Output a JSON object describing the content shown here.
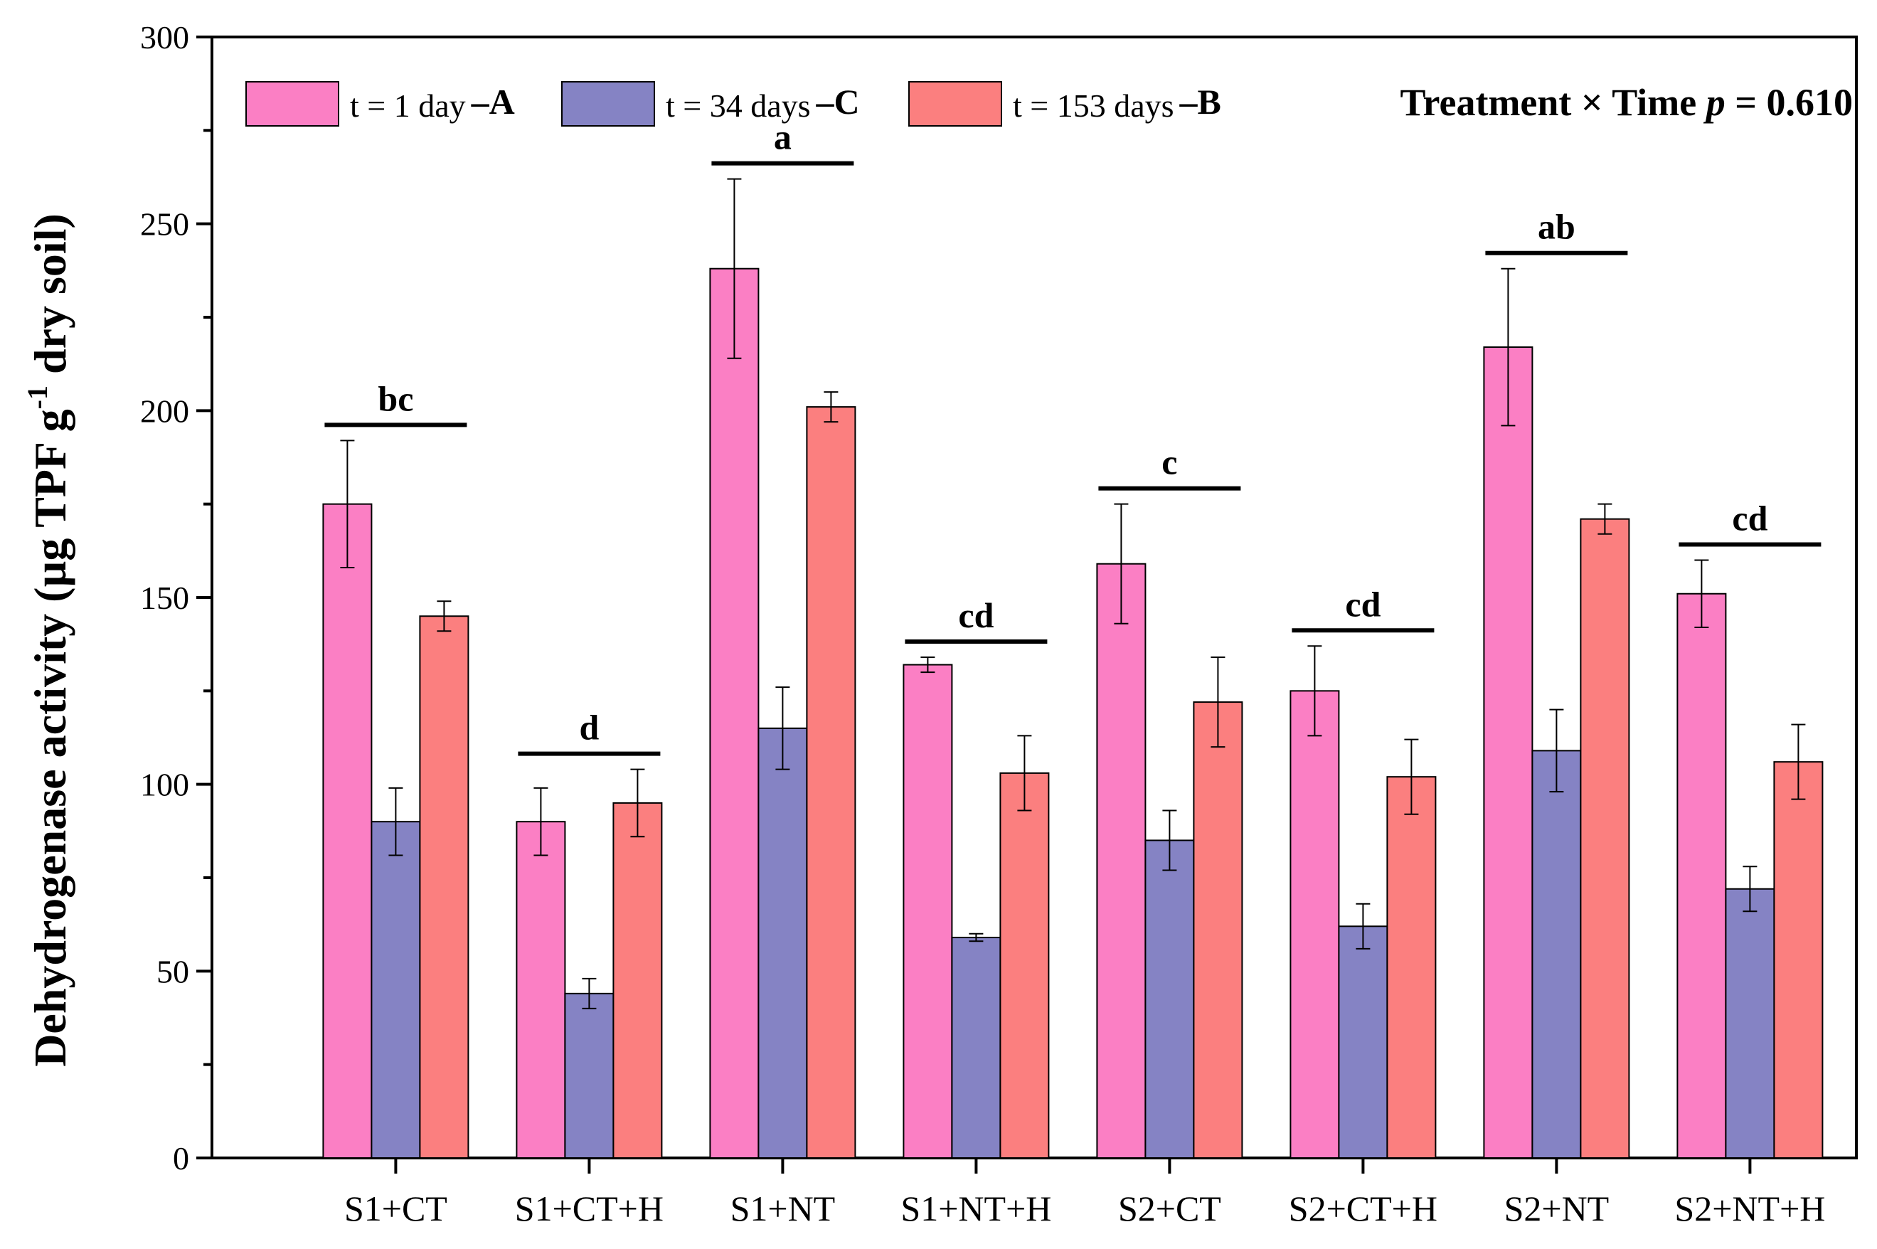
{
  "chart_data": {
    "type": "bar",
    "title": "",
    "xlabel": "",
    "ylabel": "Dehydrogenase activity (µg TPF g",
    "ylabel_sup": "-1",
    "ylabel_tail": " dry soil)",
    "ylim": [
      0,
      300
    ],
    "yticks": [
      0,
      50,
      100,
      150,
      200,
      250,
      300
    ],
    "categories": [
      "S1+CT",
      "S1+CT+H",
      "S1+NT",
      "S1+NT+H",
      "S2+CT",
      "S2+CT+H",
      "S2+NT",
      "S2+NT+H"
    ],
    "series": [
      {
        "name": "t = 1 day",
        "group": "A",
        "color": "#fb7fc4",
        "values": [
          175,
          90,
          238,
          132,
          159,
          125,
          217,
          151
        ],
        "errors": [
          17,
          9,
          24,
          2,
          16,
          12,
          21,
          9
        ]
      },
      {
        "name": "t = 34 days",
        "group": "C",
        "color": "#8583c4",
        "values": [
          90,
          44,
          115,
          59,
          85,
          62,
          109,
          72
        ],
        "errors": [
          9,
          4,
          11,
          1,
          8,
          6,
          11,
          6
        ]
      },
      {
        "name": "t = 153 days",
        "group": "B",
        "color": "#fb7f7f",
        "values": [
          145,
          95,
          201,
          103,
          122,
          102,
          171,
          106
        ],
        "errors": [
          4,
          9,
          4,
          10,
          12,
          10,
          4,
          10
        ]
      }
    ],
    "significance": [
      "bc",
      "d",
      "a",
      "cd",
      "c",
      "cd",
      "ab",
      "cd"
    ],
    "annotation": {
      "prefix": "Treatment × Time ",
      "p_symbol": "p",
      "suffix": " = 0.610"
    },
    "legend_position": "top"
  }
}
